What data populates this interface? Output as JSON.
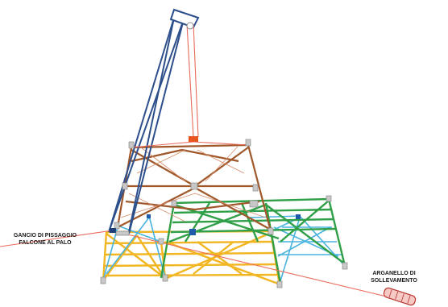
{
  "labels": {
    "hook": [
      "GANCIO DI PISSAGGIO",
      "FALCONE AL PALO"
    ],
    "winch": [
      "ARGANELLO DI",
      "SOLLEVAMENTO"
    ]
  },
  "colors": {
    "gin_pole": "#2c4f8c",
    "rope": "#ec6a5a",
    "upper_section": "#a0582a",
    "green_section": "#2fa047",
    "light_blue_section": "#49b3df",
    "yellow_section": "#f2b623",
    "node": "#c8c8c8",
    "block": "#e8541f",
    "winch": "#e45a55"
  },
  "icons": [
    "pulley-icon",
    "winch-icon",
    "hook-icon"
  ]
}
